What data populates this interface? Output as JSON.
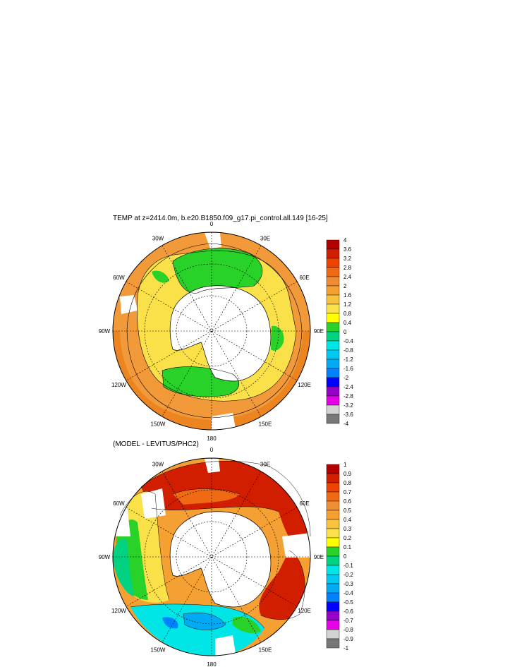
{
  "chart_data": [
    {
      "type": "heatmap",
      "projection": "south-polar-stereographic",
      "title": "TEMP at z=2414.0m, b.e20.B1850.f09_g17.pi_control.all.149 [16-25]",
      "longitude_labels": [
        "0",
        "30E",
        "60E",
        "90E",
        "120E",
        "150E",
        "180",
        "150W",
        "120W",
        "90W",
        "60W",
        "30W"
      ],
      "colorbar": {
        "labels": [
          "4",
          "3.6",
          "3.2",
          "2.8",
          "2.4",
          "2",
          "1.6",
          "1.2",
          "0.8",
          "0.4",
          "0",
          "-0.4",
          "-0.8",
          "-1.2",
          "-1.6",
          "-2",
          "-2.4",
          "-2.8",
          "-3.2",
          "-3.6",
          "-4"
        ],
        "colors": [
          "#b40000",
          "#d21e00",
          "#ee4200",
          "#f06a14",
          "#f08c32",
          "#f4a032",
          "#f8c23c",
          "#fae14a",
          "#ffff00",
          "#28d228",
          "#00d282",
          "#00e6e6",
          "#00c8f0",
          "#00aaf5",
          "#0082ff",
          "#0000ff",
          "#9600c8",
          "#e600e6",
          "#d2d2d2",
          "#787878"
        ]
      },
      "field_description": "Deep ocean potential temperature around Antarctica; mostly 0.4 to 2.8, warmest in mid-latitudes"
    },
    {
      "type": "heatmap",
      "projection": "south-polar-stereographic",
      "title": "(MODEL - LEVITUS/PHC2)",
      "longitude_labels": [
        "0",
        "30E",
        "60E",
        "90E",
        "120E",
        "150E",
        "180",
        "150W",
        "120W",
        "90W",
        "60W",
        "30W"
      ],
      "colorbar": {
        "labels": [
          "1",
          "0.9",
          "0.8",
          "0.7",
          "0.6",
          "0.5",
          "0.4",
          "0.3",
          "0.2",
          "0.1",
          "0",
          "-0.1",
          "-0.2",
          "-0.3",
          "-0.4",
          "-0.5",
          "-0.6",
          "-0.7",
          "-0.8",
          "-0.9",
          "-1"
        ],
        "colors": [
          "#b40000",
          "#d21e00",
          "#ee4200",
          "#f06a14",
          "#f08c32",
          "#f4a032",
          "#f8c23c",
          "#fae14a",
          "#ffff00",
          "#28d228",
          "#00d282",
          "#00e6e6",
          "#00c8f0",
          "#00aaf5",
          "#0082ff",
          "#0000ff",
          "#9600c8",
          "#e600e6",
          "#d2d2d2",
          "#787878"
        ]
      },
      "field_description": "Model minus observations; positive (red/orange) in Atlantic-Indian sector, negative (cyan/blue) south of Pacific near 150W-180"
    }
  ]
}
